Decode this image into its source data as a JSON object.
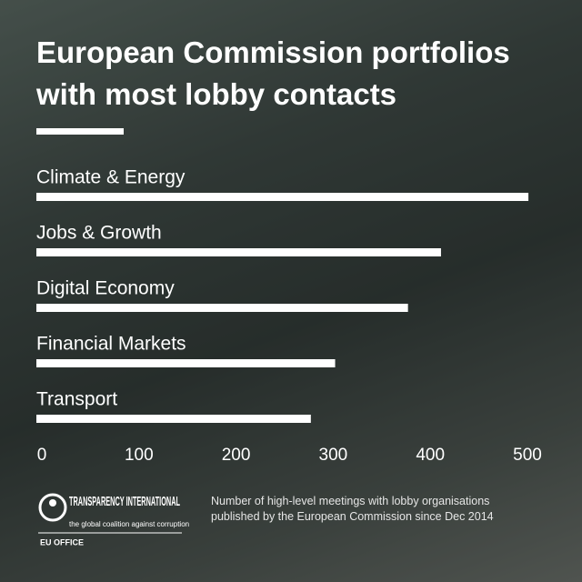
{
  "chart_data": {
    "type": "bar",
    "orientation": "horizontal",
    "title": "European Commission portfolios with most lobby contacts",
    "categories": [
      "Climate & Energy",
      "Jobs & Growth",
      "Digital Economy",
      "Financial Markets",
      "Transport"
    ],
    "values": [
      501,
      411,
      377,
      302,
      277
    ],
    "color": "#ffffff",
    "xlim": [
      0,
      500
    ],
    "xticks": [
      0,
      100,
      200,
      300,
      400,
      500
    ],
    "grid": false,
    "note": "Number of high-level meetings with lobby organisations published by the European Commission since Dec 2014"
  },
  "logo": {
    "name": "TRANSPARENCY INTERNATIONAL",
    "tagline": "the global coalition against corruption",
    "office": "EU OFFICE"
  }
}
